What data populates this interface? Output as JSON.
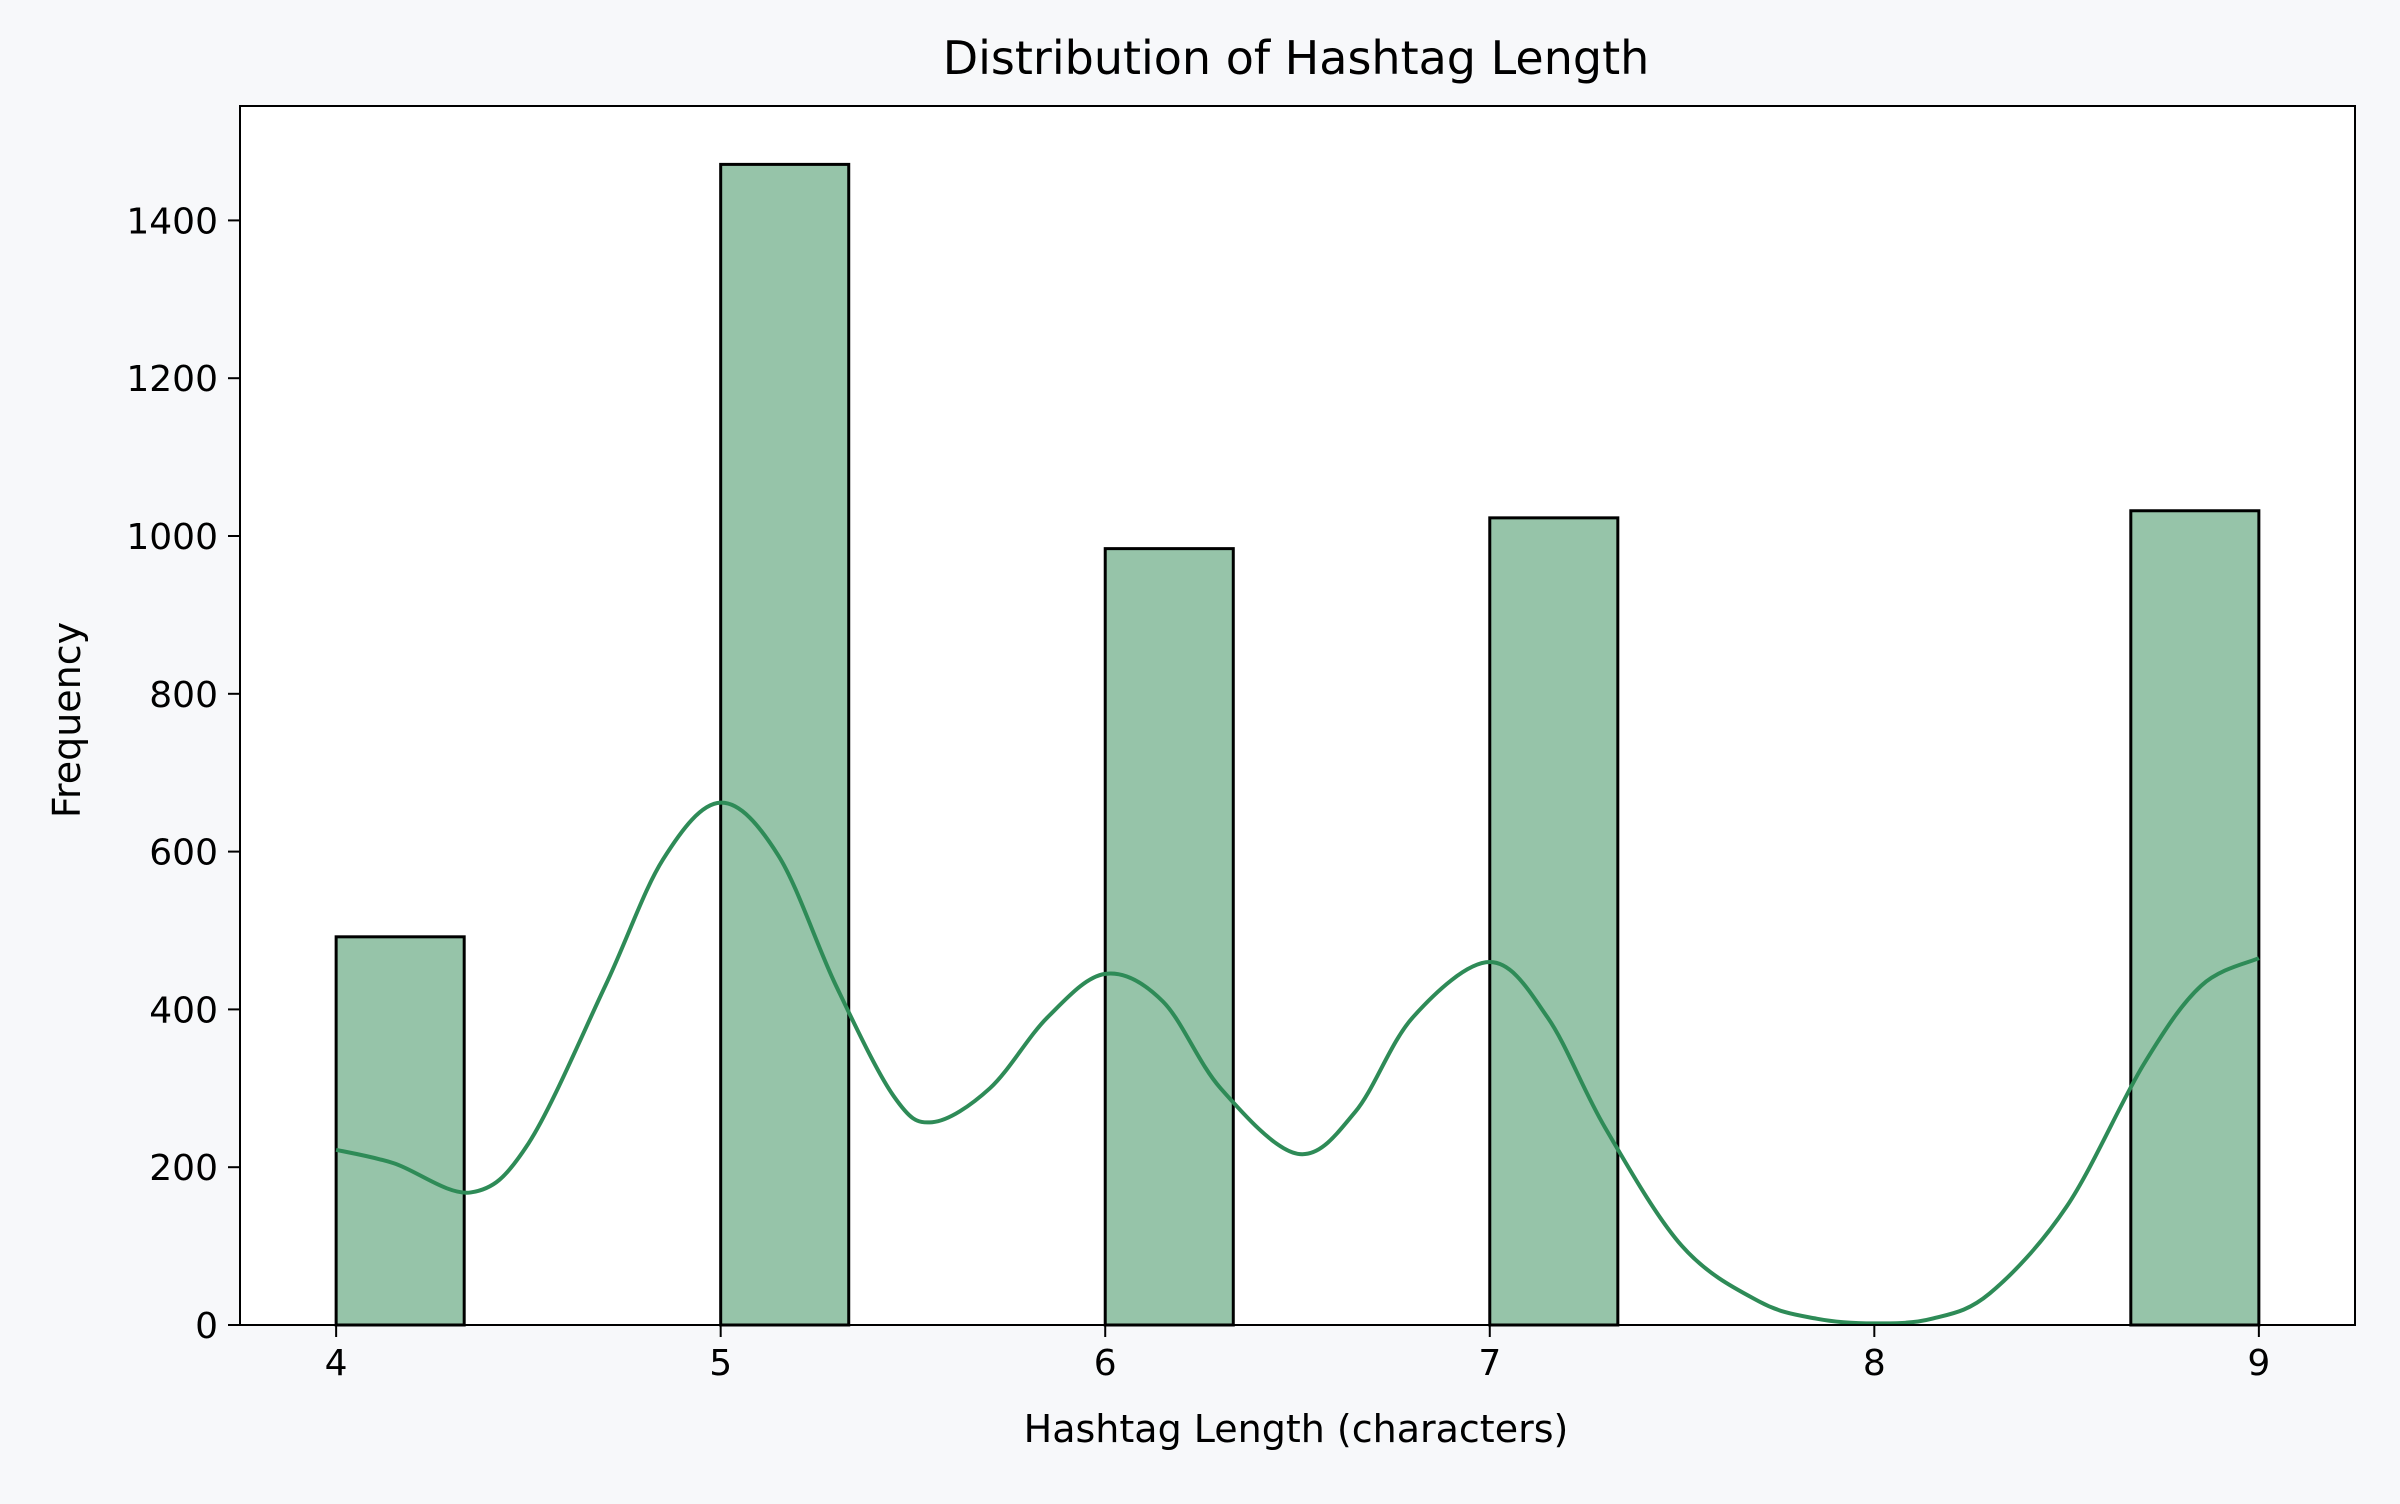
{
  "chart_data": {
    "type": "bar",
    "title": "Distribution of Hashtag Length",
    "xlabel": "Hashtag Length (characters)",
    "ylabel": "Frequency",
    "xlim": [
      3.75,
      9.25
    ],
    "ylim": [
      0,
      1545
    ],
    "x_ticks": [
      4,
      5,
      6,
      7,
      8,
      9
    ],
    "y_ticks": [
      0,
      200,
      400,
      600,
      800,
      1000,
      1200,
      1400
    ],
    "grid": false,
    "bars": [
      {
        "x0": 4.0,
        "x1": 4.333,
        "value": 492
      },
      {
        "x0": 5.0,
        "x1": 5.333,
        "value": 1471
      },
      {
        "x0": 6.0,
        "x1": 6.333,
        "value": 984
      },
      {
        "x0": 7.0,
        "x1": 7.333,
        "value": 1023
      },
      {
        "x0": 8.667,
        "x1": 9.0,
        "value": 1032
      }
    ],
    "kde_line": {
      "x": [
        4.0,
        4.15,
        4.35,
        4.5,
        4.7,
        4.85,
        5.0,
        5.15,
        5.3,
        5.45,
        5.55,
        5.7,
        5.85,
        6.0,
        6.15,
        6.3,
        6.5,
        6.65,
        6.8,
        7.0,
        7.15,
        7.3,
        7.5,
        7.7,
        7.85,
        8.0,
        8.15,
        8.3,
        8.5,
        8.7,
        8.85,
        9.0
      ],
      "y": [
        222,
        205,
        168,
        230,
        430,
        590,
        662,
        595,
        430,
        290,
        257,
        300,
        390,
        445,
        410,
        300,
        217,
        270,
        390,
        460,
        390,
        250,
        100,
        30,
        8,
        2,
        8,
        40,
        150,
        330,
        430,
        465
      ]
    },
    "colors": {
      "bar_fill": "#96c4a9",
      "bar_edge": "#000000",
      "kde_line": "#2e8b57",
      "plot_bg": "#ffffff",
      "page_bg": "#f7f8fa"
    }
  }
}
